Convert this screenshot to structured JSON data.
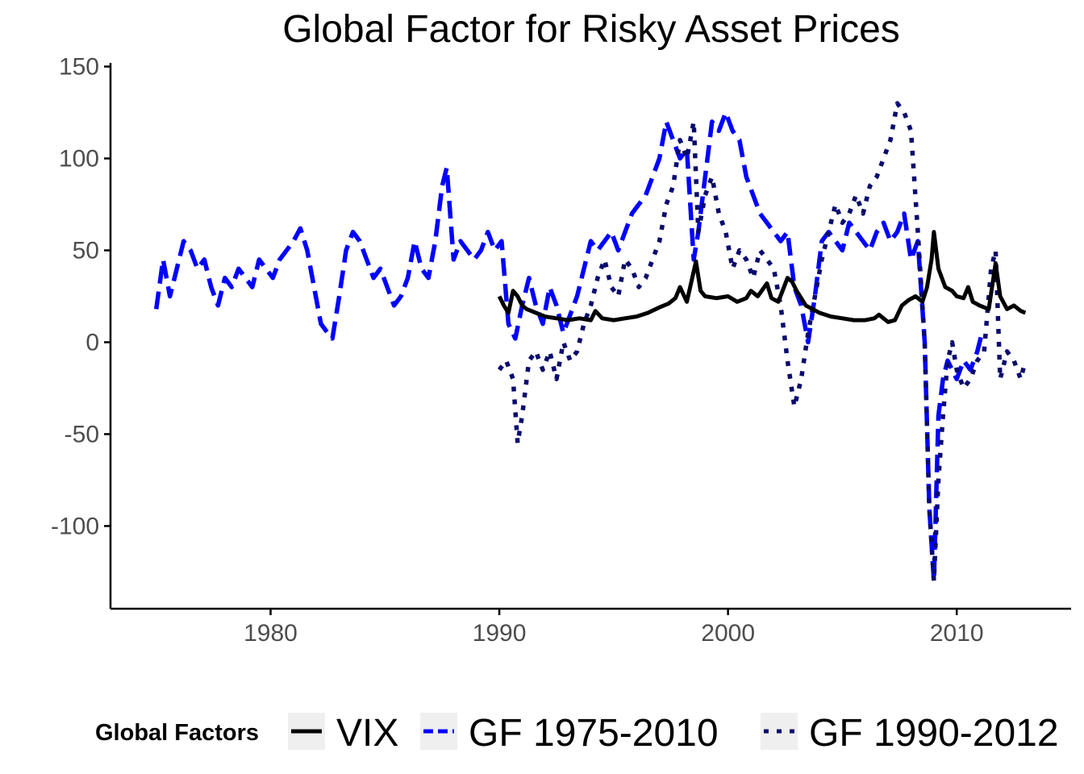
{
  "chart_data": {
    "type": "line",
    "title": "Global Factor for Risky Asset Prices",
    "xlabel": "",
    "ylabel": "",
    "xlim": [
      1973,
      2015
    ],
    "ylim": [
      -145,
      152
    ],
    "x_ticks": [
      1980,
      1990,
      2000,
      2010
    ],
    "y_ticks": [
      150,
      100,
      50,
      0,
      -50,
      -100
    ],
    "grid": false,
    "legend": {
      "title": "Global Factors",
      "position": "bottom"
    },
    "series": [
      {
        "name": "VIX",
        "color": "#000000",
        "dash": "solid",
        "x": [
          1990.0,
          1990.2,
          1990.4,
          1990.6,
          1990.8,
          1991.0,
          1991.2,
          1991.4,
          1991.6,
          1991.8,
          1992.0,
          1992.5,
          1993.0,
          1993.5,
          1994.0,
          1994.2,
          1994.5,
          1995.0,
          1995.5,
          1996.0,
          1996.5,
          1997.0,
          1997.4,
          1997.7,
          1997.9,
          1998.2,
          1998.6,
          1998.8,
          1999.0,
          1999.5,
          2000.0,
          2000.4,
          2000.8,
          2001.0,
          2001.3,
          2001.7,
          2001.9,
          2002.2,
          2002.6,
          2002.8,
          2003.0,
          2003.4,
          2003.7,
          2004.0,
          2004.5,
          2005.0,
          2005.5,
          2006.0,
          2006.4,
          2006.6,
          2007.0,
          2007.3,
          2007.6,
          2007.9,
          2008.2,
          2008.5,
          2008.7,
          2008.9,
          2009.0,
          2009.2,
          2009.5,
          2009.8,
          2010.0,
          2010.3,
          2010.5,
          2010.7,
          2011.0,
          2011.4,
          2011.7,
          2011.9,
          2012.2,
          2012.5,
          2012.8,
          2013.0
        ],
        "values": [
          25,
          20,
          16,
          28,
          25,
          20,
          18,
          17,
          16,
          15,
          14,
          13,
          12,
          13,
          12,
          17,
          13,
          12,
          13,
          14,
          16,
          19,
          21,
          24,
          30,
          22,
          44,
          28,
          25,
          24,
          25,
          22,
          24,
          28,
          25,
          32,
          24,
          22,
          35,
          33,
          28,
          20,
          18,
          16,
          14,
          13,
          12,
          12,
          13,
          15,
          11,
          12,
          20,
          23,
          25,
          22,
          30,
          45,
          60,
          40,
          30,
          28,
          25,
          24,
          30,
          22,
          20,
          18,
          43,
          25,
          18,
          20,
          17,
          16
        ]
      },
      {
        "name": "GF 1975-2010",
        "color": "#0000ff",
        "dash": "dashed",
        "x": [
          1975.0,
          1975.3,
          1975.6,
          1975.9,
          1976.2,
          1976.5,
          1976.8,
          1977.1,
          1977.4,
          1977.7,
          1978.0,
          1978.3,
          1978.6,
          1978.9,
          1979.2,
          1979.5,
          1979.8,
          1980.1,
          1980.4,
          1980.7,
          1981.0,
          1981.3,
          1981.6,
          1981.9,
          1982.2,
          1982.5,
          1982.7,
          1983.0,
          1983.3,
          1983.6,
          1983.9,
          1984.2,
          1984.5,
          1984.8,
          1985.1,
          1985.4,
          1985.7,
          1986.0,
          1986.3,
          1986.6,
          1986.9,
          1987.2,
          1987.5,
          1987.7,
          1988.0,
          1988.3,
          1988.6,
          1988.9,
          1989.2,
          1989.5,
          1989.8,
          1990.1,
          1990.4,
          1990.7,
          1991.0,
          1991.3,
          1991.6,
          1991.9,
          1992.2,
          1992.5,
          1992.8,
          1993.1,
          1993.4,
          1993.7,
          1994.0,
          1994.3,
          1994.6,
          1994.9,
          1995.2,
          1995.5,
          1995.8,
          1996.1,
          1996.4,
          1996.7,
          1997.0,
          1997.3,
          1997.6,
          1997.9,
          1998.2,
          1998.5,
          1998.7,
          1999.0,
          1999.3,
          1999.6,
          1999.9,
          2000.2,
          2000.5,
          2000.8,
          2001.1,
          2001.4,
          2001.7,
          2002.0,
          2002.3,
          2002.6,
          2002.9,
          2003.2,
          2003.5,
          2003.8,
          2004.1,
          2004.4,
          2004.7,
          2005.0,
          2005.3,
          2005.6,
          2005.9,
          2006.2,
          2006.5,
          2006.8,
          2007.1,
          2007.4,
          2007.7,
          2008.0,
          2008.3,
          2008.6,
          2008.8,
          2009.0,
          2009.2,
          2009.4,
          2009.6,
          2009.8,
          2010.0,
          2010.3,
          2010.6,
          2010.9,
          2011.1
        ],
        "values": [
          18,
          45,
          25,
          40,
          55,
          50,
          40,
          45,
          30,
          20,
          35,
          30,
          40,
          35,
          30,
          45,
          40,
          35,
          45,
          50,
          55,
          62,
          50,
          30,
          10,
          5,
          2,
          25,
          50,
          60,
          55,
          45,
          35,
          40,
          30,
          20,
          25,
          35,
          55,
          40,
          35,
          55,
          85,
          95,
          45,
          55,
          50,
          45,
          50,
          60,
          50,
          55,
          10,
          2,
          20,
          35,
          20,
          10,
          30,
          20,
          5,
          15,
          25,
          40,
          55,
          50,
          55,
          60,
          50,
          60,
          70,
          75,
          80,
          90,
          100,
          120,
          110,
          100,
          105,
          45,
          60,
          90,
          120,
          115,
          125,
          115,
          110,
          90,
          80,
          70,
          65,
          60,
          55,
          60,
          30,
          20,
          0,
          25,
          55,
          60,
          55,
          50,
          65,
          60,
          55,
          50,
          60,
          65,
          55,
          60,
          70,
          45,
          55,
          0,
          -90,
          -130,
          -40,
          -20,
          -10,
          -15,
          -20,
          -10,
          -15,
          -5,
          5
        ]
      },
      {
        "name": "GF 1990-2012",
        "color": "#0a0a6e",
        "dash": "dotted",
        "x": [
          1990.0,
          1990.3,
          1990.6,
          1990.8,
          1991.0,
          1991.3,
          1991.6,
          1991.9,
          1992.2,
          1992.5,
          1992.8,
          1993.1,
          1993.4,
          1993.7,
          1994.0,
          1994.3,
          1994.6,
          1994.9,
          1995.2,
          1995.5,
          1995.8,
          1996.1,
          1996.4,
          1996.7,
          1997.0,
          1997.3,
          1997.6,
          1997.9,
          1998.2,
          1998.5,
          1998.7,
          1999.0,
          1999.3,
          1999.6,
          1999.9,
          2000.2,
          2000.5,
          2000.8,
          2001.1,
          2001.4,
          2001.7,
          2002.0,
          2002.3,
          2002.6,
          2002.9,
          2003.2,
          2003.5,
          2003.8,
          2004.1,
          2004.4,
          2004.7,
          2005.0,
          2005.3,
          2005.6,
          2005.9,
          2006.2,
          2006.5,
          2006.8,
          2007.1,
          2007.4,
          2007.7,
          2008.0,
          2008.3,
          2008.6,
          2008.8,
          2009.0,
          2009.2,
          2009.4,
          2009.6,
          2009.8,
          2010.0,
          2010.3,
          2010.6,
          2010.9,
          2011.2,
          2011.5,
          2011.7,
          2011.9,
          2012.2,
          2012.5,
          2012.8,
          2013.0
        ],
        "values": [
          -15,
          -10,
          -20,
          -55,
          -40,
          -10,
          -5,
          -15,
          -5,
          -20,
          0,
          -10,
          -5,
          10,
          20,
          35,
          45,
          30,
          25,
          45,
          40,
          30,
          35,
          45,
          55,
          75,
          85,
          110,
          100,
          120,
          60,
          80,
          90,
          70,
          60,
          40,
          50,
          45,
          35,
          50,
          45,
          40,
          20,
          -10,
          -35,
          -20,
          5,
          25,
          45,
          60,
          75,
          65,
          70,
          80,
          70,
          85,
          90,
          100,
          110,
          130,
          125,
          115,
          60,
          0,
          -90,
          -130,
          -75,
          -40,
          -10,
          0,
          -15,
          -25,
          -20,
          -10,
          -5,
          40,
          50,
          -20,
          -5,
          -10,
          -20,
          -10
        ]
      }
    ]
  }
}
